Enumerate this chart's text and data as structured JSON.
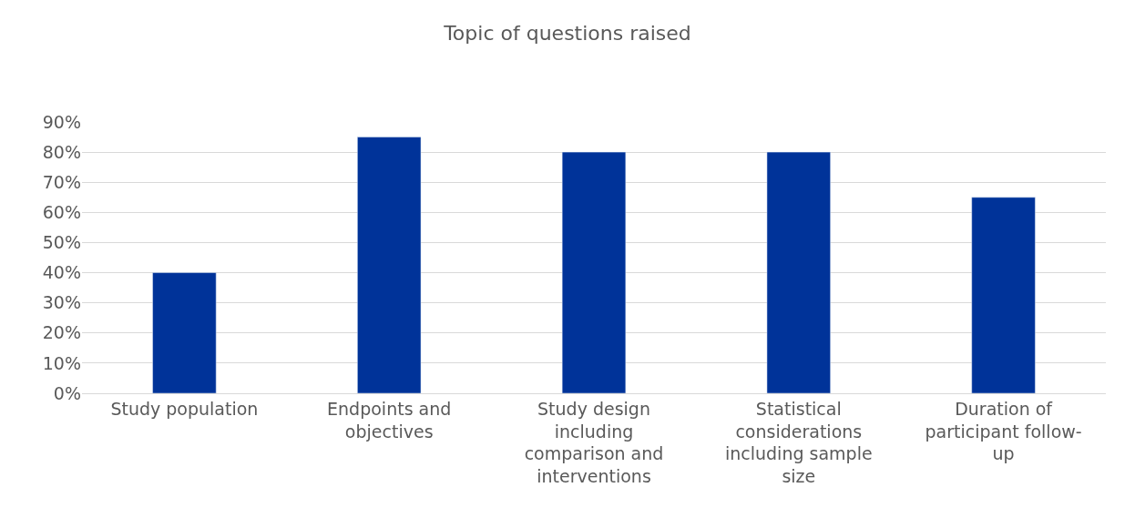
{
  "chart_data": {
    "type": "bar",
    "title": "Topic of questions raised",
    "categories": [
      "Study population",
      "Endpoints and objectives",
      "Study design including comparison and interventions",
      "Statistical considerations including sample size",
      "Duration of participant follow-up"
    ],
    "values": [
      40,
      85,
      80,
      80,
      65
    ],
    "color": "#003399",
    "ylim": [
      0,
      90
    ],
    "yticks": [
      {
        "value": 0,
        "label": "0%"
      },
      {
        "value": 10,
        "label": "10%"
      },
      {
        "value": 20,
        "label": "20%"
      },
      {
        "value": 30,
        "label": "30%"
      },
      {
        "value": 40,
        "label": "40%"
      },
      {
        "value": 50,
        "label": "50%"
      },
      {
        "value": 60,
        "label": "60%"
      },
      {
        "value": 70,
        "label": "70%"
      },
      {
        "value": 80,
        "label": "80%"
      },
      {
        "value": 90,
        "label": "90%"
      }
    ],
    "grid": "y",
    "legend": false
  }
}
